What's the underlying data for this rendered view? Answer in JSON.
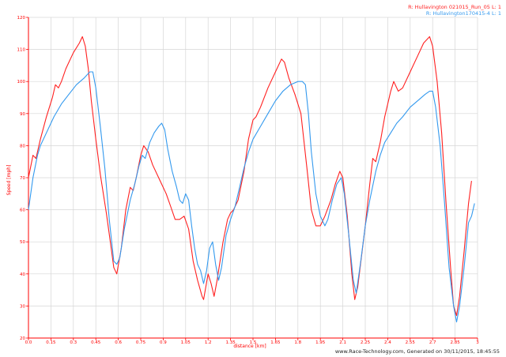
{
  "footer": "www.Race-Technology.com, Generated on 30/11/2015, 18:45:55",
  "chart_data": {
    "type": "line",
    "xlabel": "distance [km]",
    "ylabel": "Speed [mph]",
    "xlim": [
      0,
      3
    ],
    "ylim": [
      20,
      120
    ],
    "grid": true,
    "axis_color": "#ff0000",
    "x_ticks": [
      "0.0",
      "0.15",
      "0.3",
      "0.45",
      "0.6",
      "0.75",
      "0.9",
      "1.05",
      "1.2",
      "1.35",
      "1.5",
      "1.65",
      "1.8",
      "1.95",
      "2.1",
      "2.25",
      "2.4",
      "2.55",
      "2.7",
      "2.85",
      "3"
    ],
    "y_ticks": [
      "20",
      "30",
      "40",
      "50",
      "60",
      "70",
      "80",
      "90",
      "100",
      "110",
      "120"
    ],
    "legend_position": "top-right",
    "series": [
      {
        "name": "R: Hullavington 021015_Run_05  L: 1",
        "color": "#ff2020",
        "points": [
          [
            0.0,
            70
          ],
          [
            0.03,
            77
          ],
          [
            0.05,
            76
          ],
          [
            0.08,
            82
          ],
          [
            0.12,
            89
          ],
          [
            0.16,
            95
          ],
          [
            0.18,
            99
          ],
          [
            0.2,
            98
          ],
          [
            0.22,
            100
          ],
          [
            0.25,
            104
          ],
          [
            0.3,
            109
          ],
          [
            0.34,
            112
          ],
          [
            0.36,
            114
          ],
          [
            0.38,
            111
          ],
          [
            0.4,
            104
          ],
          [
            0.42,
            94
          ],
          [
            0.45,
            82
          ],
          [
            0.48,
            71
          ],
          [
            0.52,
            59
          ],
          [
            0.55,
            49
          ],
          [
            0.57,
            42
          ],
          [
            0.59,
            40
          ],
          [
            0.62,
            48
          ],
          [
            0.65,
            60
          ],
          [
            0.68,
            67
          ],
          [
            0.7,
            66
          ],
          [
            0.72,
            70
          ],
          [
            0.75,
            77
          ],
          [
            0.77,
            80
          ],
          [
            0.8,
            78
          ],
          [
            0.83,
            74
          ],
          [
            0.88,
            69
          ],
          [
            0.92,
            65
          ],
          [
            0.95,
            61
          ],
          [
            0.98,
            57
          ],
          [
            1.01,
            57
          ],
          [
            1.04,
            58
          ],
          [
            1.07,
            54
          ],
          [
            1.1,
            44
          ],
          [
            1.13,
            38
          ],
          [
            1.16,
            33
          ],
          [
            1.17,
            32
          ],
          [
            1.2,
            40
          ],
          [
            1.22,
            37
          ],
          [
            1.24,
            33
          ],
          [
            1.26,
            38
          ],
          [
            1.3,
            50
          ],
          [
            1.33,
            57
          ],
          [
            1.35,
            59
          ],
          [
            1.37,
            60
          ],
          [
            1.4,
            63
          ],
          [
            1.44,
            72
          ],
          [
            1.47,
            82
          ],
          [
            1.5,
            88
          ],
          [
            1.52,
            89
          ],
          [
            1.55,
            92
          ],
          [
            1.6,
            98
          ],
          [
            1.65,
            103
          ],
          [
            1.69,
            107
          ],
          [
            1.71,
            106
          ],
          [
            1.74,
            101
          ],
          [
            1.78,
            96
          ],
          [
            1.82,
            90
          ],
          [
            1.86,
            73
          ],
          [
            1.89,
            60
          ],
          [
            1.92,
            55
          ],
          [
            1.95,
            55
          ],
          [
            1.98,
            58
          ],
          [
            2.02,
            63
          ],
          [
            2.05,
            68
          ],
          [
            2.08,
            72
          ],
          [
            2.1,
            70
          ],
          [
            2.13,
            58
          ],
          [
            2.16,
            40
          ],
          [
            2.18,
            32
          ],
          [
            2.2,
            36
          ],
          [
            2.25,
            55
          ],
          [
            2.28,
            68
          ],
          [
            2.3,
            76
          ],
          [
            2.32,
            75
          ],
          [
            2.35,
            81
          ],
          [
            2.38,
            89
          ],
          [
            2.42,
            97
          ],
          [
            2.44,
            100
          ],
          [
            2.47,
            97
          ],
          [
            2.5,
            98
          ],
          [
            2.55,
            103
          ],
          [
            2.6,
            108
          ],
          [
            2.64,
            112
          ],
          [
            2.68,
            114
          ],
          [
            2.7,
            111
          ],
          [
            2.73,
            100
          ],
          [
            2.76,
            84
          ],
          [
            2.79,
            62
          ],
          [
            2.82,
            42
          ],
          [
            2.84,
            30
          ],
          [
            2.86,
            27
          ],
          [
            2.88,
            33
          ],
          [
            2.91,
            47
          ],
          [
            2.94,
            62
          ],
          [
            2.96,
            69
          ]
        ]
      },
      {
        "name": "R: Hullavington170415-4  L: 1",
        "color": "#3399ee",
        "points": [
          [
            0.0,
            60
          ],
          [
            0.03,
            70
          ],
          [
            0.06,
            77
          ],
          [
            0.08,
            80
          ],
          [
            0.12,
            84
          ],
          [
            0.17,
            89
          ],
          [
            0.22,
            93
          ],
          [
            0.27,
            96
          ],
          [
            0.32,
            99
          ],
          [
            0.37,
            101
          ],
          [
            0.41,
            103
          ],
          [
            0.43,
            103
          ],
          [
            0.45,
            98
          ],
          [
            0.48,
            86
          ],
          [
            0.51,
            73
          ],
          [
            0.54,
            57
          ],
          [
            0.57,
            44
          ],
          [
            0.59,
            43
          ],
          [
            0.61,
            45
          ],
          [
            0.64,
            54
          ],
          [
            0.68,
            63
          ],
          [
            0.71,
            68
          ],
          [
            0.74,
            74
          ],
          [
            0.76,
            77
          ],
          [
            0.78,
            76
          ],
          [
            0.81,
            81
          ],
          [
            0.84,
            84
          ],
          [
            0.87,
            86
          ],
          [
            0.89,
            87
          ],
          [
            0.91,
            85
          ],
          [
            0.93,
            79
          ],
          [
            0.96,
            72
          ],
          [
            0.99,
            67
          ],
          [
            1.01,
            63
          ],
          [
            1.03,
            62
          ],
          [
            1.05,
            65
          ],
          [
            1.07,
            63
          ],
          [
            1.09,
            55
          ],
          [
            1.11,
            48
          ],
          [
            1.13,
            43
          ],
          [
            1.15,
            41
          ],
          [
            1.17,
            37
          ],
          [
            1.19,
            41
          ],
          [
            1.21,
            48
          ],
          [
            1.23,
            50
          ],
          [
            1.25,
            43
          ],
          [
            1.27,
            38
          ],
          [
            1.29,
            42
          ],
          [
            1.32,
            52
          ],
          [
            1.35,
            57
          ],
          [
            1.38,
            61
          ],
          [
            1.41,
            67
          ],
          [
            1.44,
            73
          ],
          [
            1.47,
            78
          ],
          [
            1.5,
            82
          ],
          [
            1.55,
            86
          ],
          [
            1.6,
            90
          ],
          [
            1.65,
            94
          ],
          [
            1.7,
            97
          ],
          [
            1.75,
            99
          ],
          [
            1.8,
            100
          ],
          [
            1.83,
            100
          ],
          [
            1.85,
            99
          ],
          [
            1.87,
            90
          ],
          [
            1.89,
            78
          ],
          [
            1.92,
            65
          ],
          [
            1.95,
            58
          ],
          [
            1.98,
            55
          ],
          [
            2.0,
            57
          ],
          [
            2.03,
            63
          ],
          [
            2.06,
            68
          ],
          [
            2.09,
            70
          ],
          [
            2.11,
            65
          ],
          [
            2.14,
            52
          ],
          [
            2.17,
            38
          ],
          [
            2.19,
            34
          ],
          [
            2.22,
            44
          ],
          [
            2.25,
            55
          ],
          [
            2.28,
            63
          ],
          [
            2.32,
            72
          ],
          [
            2.35,
            77
          ],
          [
            2.38,
            81
          ],
          [
            2.42,
            84
          ],
          [
            2.46,
            87
          ],
          [
            2.5,
            89
          ],
          [
            2.55,
            92
          ],
          [
            2.6,
            94
          ],
          [
            2.65,
            96
          ],
          [
            2.68,
            97
          ],
          [
            2.7,
            97
          ],
          [
            2.72,
            92
          ],
          [
            2.75,
            80
          ],
          [
            2.78,
            62
          ],
          [
            2.81,
            42
          ],
          [
            2.84,
            30
          ],
          [
            2.86,
            25
          ],
          [
            2.88,
            30
          ],
          [
            2.91,
            42
          ],
          [
            2.94,
            56
          ],
          [
            2.96,
            58
          ],
          [
            2.98,
            62
          ]
        ]
      }
    ]
  }
}
